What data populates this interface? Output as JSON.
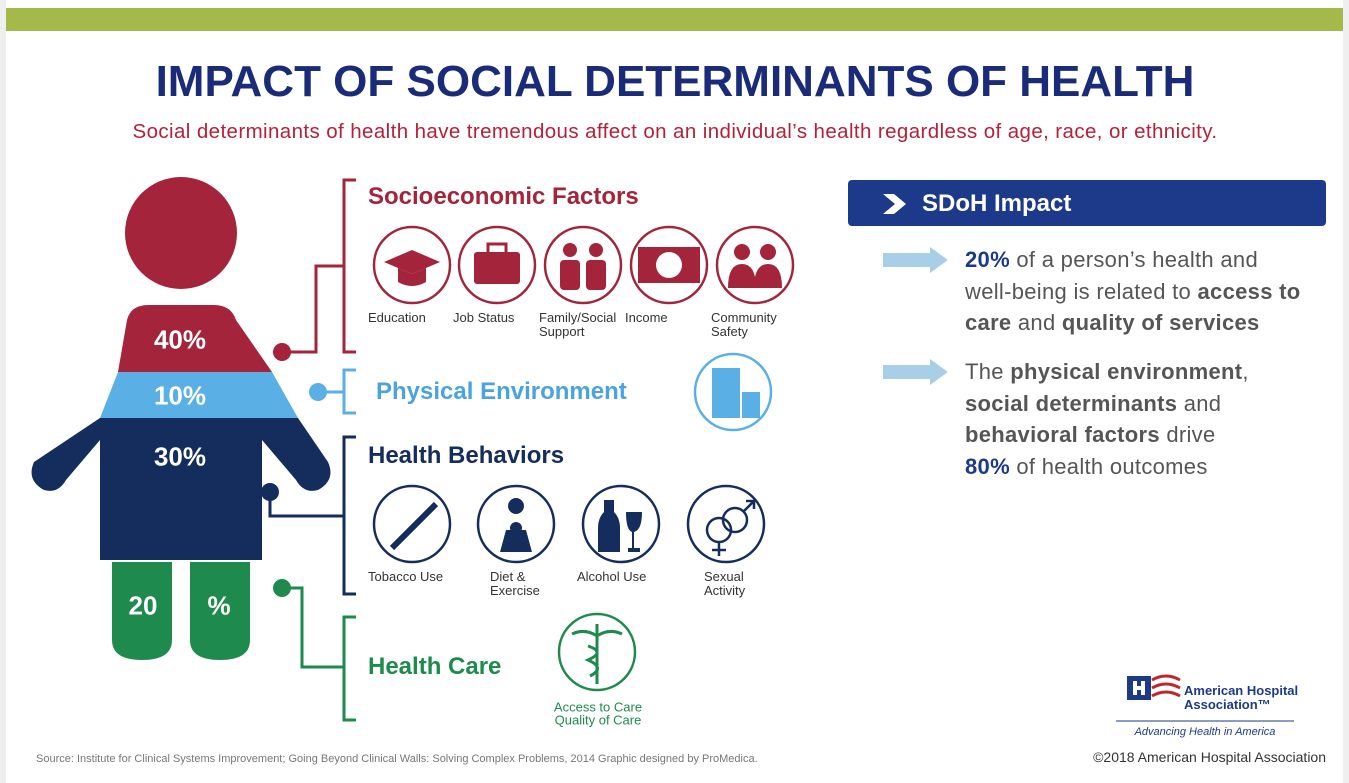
{
  "header": {
    "title": "IMPACT OF SOCIAL DETERMINANTS OF HEALTH",
    "subtitle": "Social determinants of health have tremendous affect on an individual’s health regardless of age, race, or ethnicity."
  },
  "figure": {
    "segments": [
      "40%",
      "10%",
      "30%",
      "20",
      "%"
    ]
  },
  "groups": [
    {
      "title": "Socioeconomic Factors",
      "items": [
        "Education",
        "Job Status",
        "Family/Social Support",
        "Income",
        "Community Safety"
      ]
    },
    {
      "title": "Physical Environment"
    },
    {
      "title": "Health Behaviors",
      "items": [
        "Tobacco Use",
        "Diet & Exercise",
        "Alcohol Use",
        "Sexual Activity"
      ]
    },
    {
      "title": "Health Care",
      "items": [
        "Access to Care",
        "Quality of Care"
      ]
    }
  ],
  "impact": {
    "title": "SDoH Impact",
    "points": [
      [
        "20%",
        " of a person’s health and well-being is related to ",
        "access to care",
        " and ",
        "quality of services"
      ],
      [
        "The ",
        "physical environment",
        ", ",
        "social determinants",
        " and ",
        "behavioral factors",
        " drive ",
        "80%",
        " of health outcomes"
      ]
    ]
  },
  "logo": {
    "name": "American Hospital Association™",
    "tagline": "Advancing Health in America"
  },
  "footer": {
    "source": "Source: Institute for Clinical Systems Improvement; Going Beyond Clinical Walls: Solving Complex Problems, 2014 Graphic designed by ProMedica.",
    "copyright": "©2018 American Hospital Association"
  }
}
